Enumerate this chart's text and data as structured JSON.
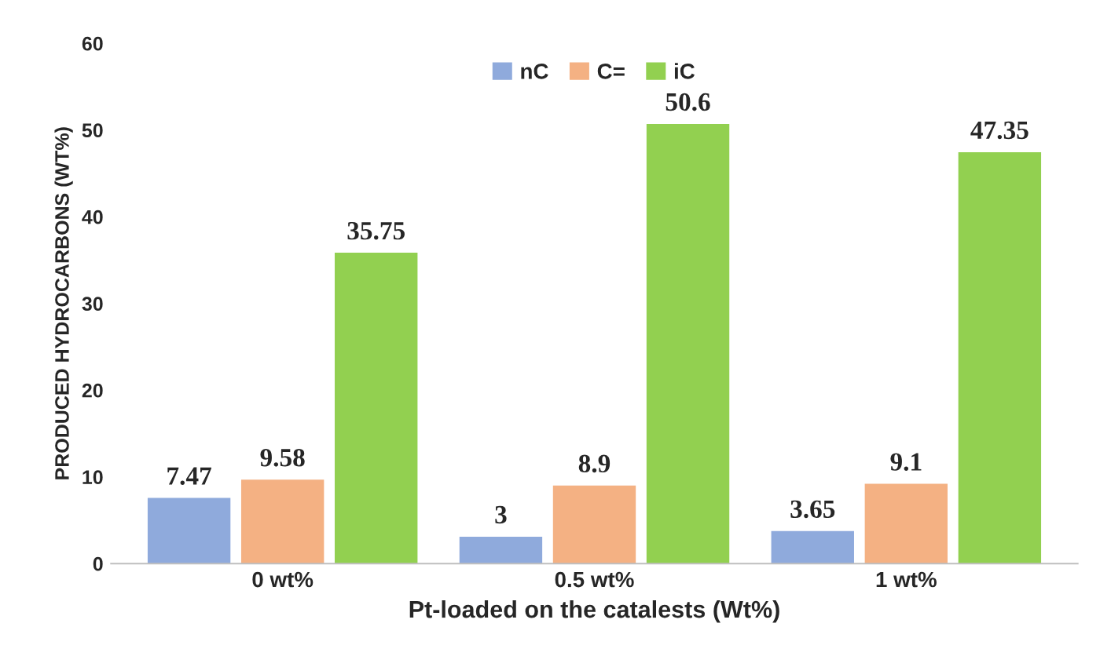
{
  "chart_data": {
    "type": "bar",
    "xlabel": "Pt-loaded on the catalests (Wt%)",
    "ylabel": "PRODUCED HYDROCARBONS (WT%)",
    "categories": [
      "0 wt%",
      "0.5 wt%",
      "1 wt%"
    ],
    "series": [
      {
        "name": "nC",
        "color": "#8faadc",
        "values": [
          7.47,
          3,
          3.65
        ]
      },
      {
        "name": "C=",
        "color": "#f4b183",
        "values": [
          9.58,
          8.9,
          9.1
        ]
      },
      {
        "name": "iC",
        "color": "#92d050",
        "values": [
          35.75,
          50.6,
          47.35
        ]
      }
    ],
    "ylim": [
      0,
      60
    ],
    "yticks": [
      0,
      10,
      20,
      30,
      40,
      50,
      60
    ],
    "grid": false,
    "legend": "top",
    "data_labels": true
  }
}
